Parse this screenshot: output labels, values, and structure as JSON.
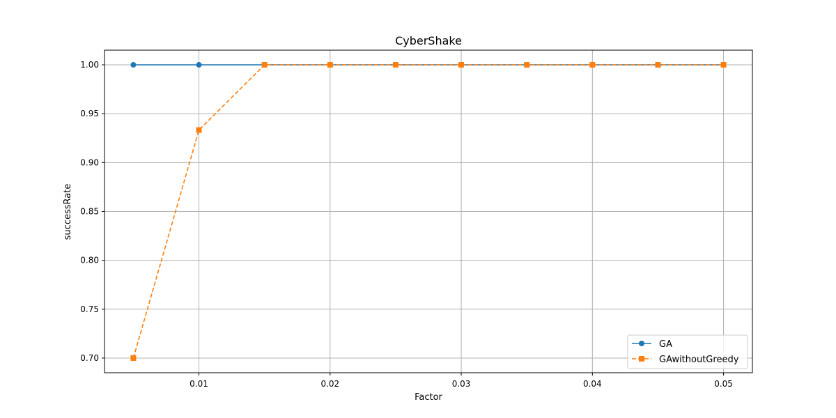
{
  "chart_data": {
    "type": "line",
    "title": "CyberShake",
    "xlabel": "Factor",
    "ylabel": "successRate",
    "x": [
      0.005,
      0.01,
      0.015,
      0.02,
      0.025,
      0.03,
      0.035,
      0.04,
      0.045,
      0.05
    ],
    "xlim": [
      0.0028,
      0.0522
    ],
    "ylim": [
      0.685,
      1.015
    ],
    "xticks": [
      "0.01",
      "0.02",
      "0.03",
      "0.04",
      "0.05"
    ],
    "yticks": [
      "0.70",
      "0.75",
      "0.80",
      "0.85",
      "0.90",
      "0.95",
      "1.00"
    ],
    "grid": true,
    "legend_position": "lower-right",
    "series": [
      {
        "name": "GA",
        "values": [
          1.0,
          1.0,
          1.0,
          1.0,
          1.0,
          1.0,
          1.0,
          1.0,
          1.0,
          1.0
        ],
        "color": "#1f77b4",
        "line_style": "solid",
        "marker": "circle"
      },
      {
        "name": "GAwithoutGreedy",
        "values": [
          0.7,
          0.9333,
          1.0,
          1.0,
          1.0,
          1.0,
          1.0,
          1.0,
          1.0,
          1.0
        ],
        "color": "#ff7f0e",
        "line_style": "dashed",
        "marker": "square"
      }
    ]
  }
}
